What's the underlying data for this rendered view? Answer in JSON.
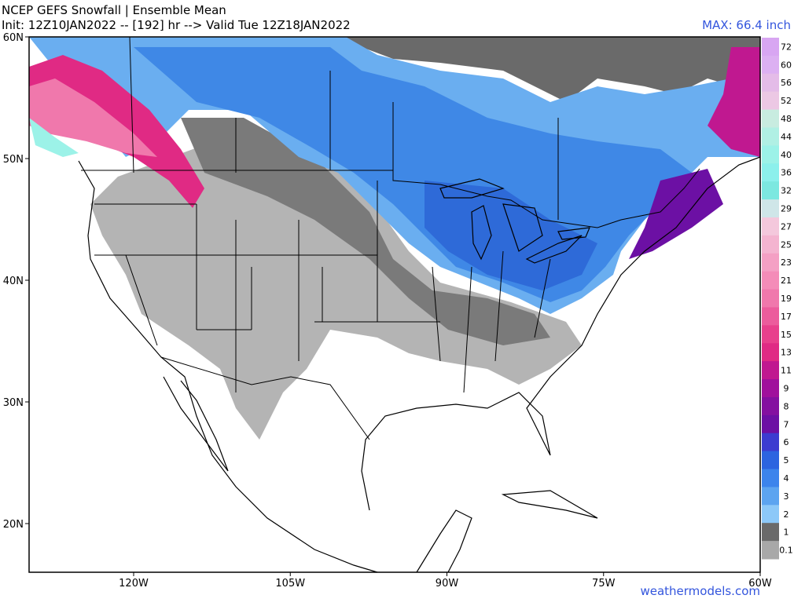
{
  "header": {
    "title": "NCEP GEFS Snowfall | Ensemble Mean",
    "subtitle": "Init: 12Z10JAN2022 -- [192] hr --> Valid Tue 12Z18JAN2022",
    "max_label": "MAX: 66.4 inch"
  },
  "map": {
    "lat_labels": [
      "60N",
      "50N",
      "40N",
      "30N",
      "20N"
    ],
    "lon_labels": [
      "120W",
      "105W",
      "90W",
      "75W",
      "60W"
    ]
  },
  "legend": {
    "items": [
      {
        "label": "72",
        "color": "#d8a6f2"
      },
      {
        "label": "60",
        "color": "#dcb0f2"
      },
      {
        "label": "56",
        "color": "#e4bce8"
      },
      {
        "label": "52",
        "color": "#ecc8e4"
      },
      {
        "label": "48",
        "color": "#c8ece0"
      },
      {
        "label": "44",
        "color": "#b0f0e4"
      },
      {
        "label": "40",
        "color": "#9cf2e8"
      },
      {
        "label": "36",
        "color": "#8cf0ec"
      },
      {
        "label": "32",
        "color": "#7ce8e0"
      },
      {
        "label": "29",
        "color": "#cfe6e8"
      },
      {
        "label": "27",
        "color": "#f4c8dc"
      },
      {
        "label": "25",
        "color": "#f4b4d0"
      },
      {
        "label": "23",
        "color": "#f4a0c4"
      },
      {
        "label": "21",
        "color": "#f48cb8"
      },
      {
        "label": "19",
        "color": "#f078ac"
      },
      {
        "label": "17",
        "color": "#ec5c9c"
      },
      {
        "label": "15",
        "color": "#e8408c"
      },
      {
        "label": "13",
        "color": "#e02a84"
      },
      {
        "label": "11",
        "color": "#c01890"
      },
      {
        "label": "9",
        "color": "#a0109c"
      },
      {
        "label": "8",
        "color": "#8410a0"
      },
      {
        "label": "7",
        "color": "#6c10a4"
      },
      {
        "label": "6",
        "color": "#3c3cd0"
      },
      {
        "label": "5",
        "color": "#2c64e0"
      },
      {
        "label": "4",
        "color": "#3c84ec"
      },
      {
        "label": "3",
        "color": "#5ca4f0"
      },
      {
        "label": "2",
        "color": "#8cc8f8"
      },
      {
        "label": "1",
        "color": "#6a6a6a"
      },
      {
        "label": "0.1",
        "color": "#a8a8a8"
      }
    ]
  },
  "footer": {
    "credit": "weathermodels.com"
  }
}
